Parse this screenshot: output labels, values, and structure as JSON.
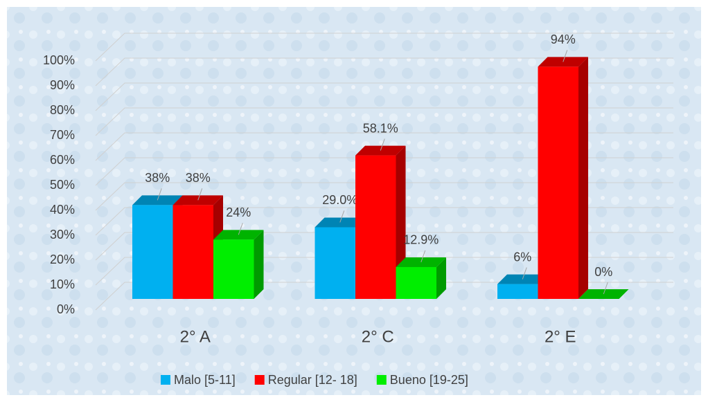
{
  "chart_data": {
    "type": "bar3d",
    "categories": [
      "2° A",
      "2° C",
      "2° E"
    ],
    "series": [
      {
        "name": "Malo [5-11]",
        "color": "#00b0f0",
        "values": [
          38,
          29.0,
          6
        ],
        "value_labels": [
          "38%",
          "29.0%",
          "6%"
        ]
      },
      {
        "name": "Regular [12- 18]",
        "color": "#ff0000",
        "values": [
          38,
          58.1,
          94
        ],
        "value_labels": [
          "38%",
          "58.1%",
          "94%"
        ]
      },
      {
        "name": "Bueno  [19-25]",
        "color": "#00ee00",
        "values": [
          24,
          12.9,
          0
        ],
        "value_labels": [
          "24%",
          "12.9%",
          "0%"
        ]
      }
    ],
    "ylim": [
      0,
      100
    ],
    "yticks": [
      {
        "value": 0,
        "label": "0%"
      },
      {
        "value": 10,
        "label": "10%"
      },
      {
        "value": 20,
        "label": "20%"
      },
      {
        "value": 30,
        "label": "30%"
      },
      {
        "value": 40,
        "label": "40%"
      },
      {
        "value": 50,
        "label": "50%"
      },
      {
        "value": 60,
        "label": "60%"
      },
      {
        "value": 70,
        "label": "70%"
      },
      {
        "value": 80,
        "label": "80%"
      },
      {
        "value": 90,
        "label": "90%"
      },
      {
        "value": 100,
        "label": "100%"
      }
    ],
    "grid": true,
    "legend": "bottom"
  }
}
